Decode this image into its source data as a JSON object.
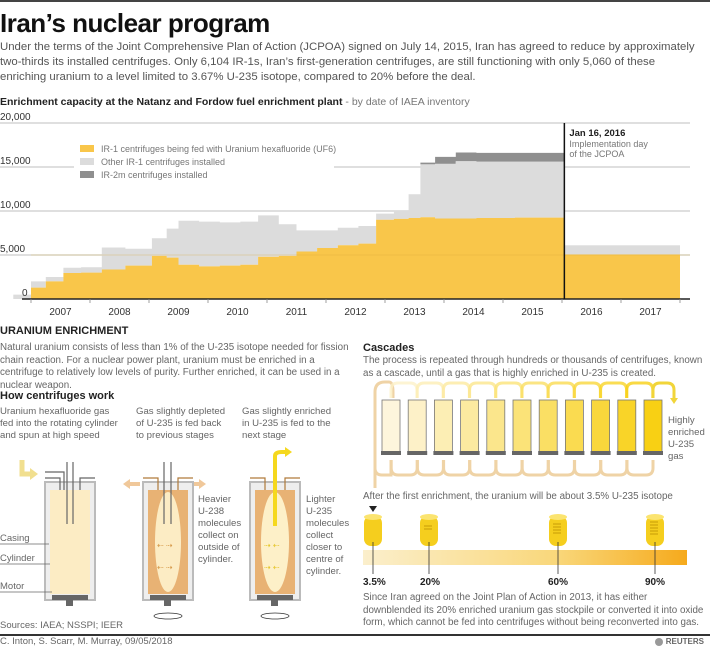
{
  "header": {
    "title": "Iran’s nuclear program",
    "intro": "Under the terms of the Joint Comprehensive Plan of Action (JCPOA) signed on July 14, 2015, Iran has agreed to reduce by approximately two-thirds its installed centrifuges. Only 6,104 IR-1s, Iran’s first-generation centrifuges, are still functioning with only 5,060 of these enriching uranium to a level limited to 3.67% U-235 isotope, compared to 20% before the deal."
  },
  "chart_heading": {
    "title": "Enrichment capacity at the Natanz and Fordow fuel enrichment plant",
    "subtitle": " - by date of IAEA inventory"
  },
  "chart_data": {
    "type": "area",
    "stacked": true,
    "step": true,
    "title": "Enrichment capacity at the Natanz and Fordow fuel enrichment plant",
    "subtitle": "by date of IAEA inventory",
    "xlabel": "",
    "ylabel": "",
    "xlim": [
      2006.5,
      2018.0
    ],
    "ylim": [
      0,
      20000
    ],
    "yticks": [
      0,
      5000,
      10000,
      15000,
      20000
    ],
    "ytick_labels": [
      "0",
      "5,000",
      "10,000",
      "15,000",
      "20,000"
    ],
    "xtick_labels": [
      "2007",
      "2008",
      "2009",
      "2010",
      "2011",
      "2012",
      "2013",
      "2014",
      "2015",
      "2016",
      "2017"
    ],
    "grid": true,
    "legend_position": "top-left",
    "x": [
      2006.7,
      2007.0,
      2007.25,
      2007.55,
      2007.85,
      2008.2,
      2008.6,
      2009.05,
      2009.3,
      2009.5,
      2009.85,
      2010.2,
      2010.55,
      2010.85,
      2011.2,
      2011.5,
      2011.85,
      2012.2,
      2012.55,
      2012.85,
      2013.15,
      2013.4,
      2013.6,
      2013.85,
      2014.2,
      2014.55,
      2014.85,
      2015.2,
      2015.55
    ],
    "x_end": 2016.05,
    "series": [
      {
        "name": "IR-1 centrifuges being fed with Uranium hexafluoride (UF6)",
        "color": "#f9c64a",
        "values": [
          0,
          1300,
          2000,
          2950,
          3000,
          3350,
          3800,
          4900,
          4700,
          3900,
          3700,
          3800,
          3900,
          4800,
          4900,
          5400,
          5800,
          6100,
          6300,
          9000,
          9100,
          9200,
          9300,
          9150,
          9150,
          9200,
          9200,
          9250,
          9250
        ]
      },
      {
        "name": "Other IR-1 centrifuges installed",
        "color": "#dcdcdc",
        "values": [
          500,
          700,
          500,
          600,
          600,
          2500,
          1900,
          2000,
          3300,
          5000,
          5100,
          4900,
          4900,
          4700,
          3600,
          2400,
          2000,
          2000,
          2000,
          700,
          1000,
          2700,
          6000,
          6200,
          6500,
          6400,
          6400,
          6350,
          6350
        ]
      },
      {
        "name": "IR-2m centrifuges installed",
        "color": "#8f8f8f",
        "values": [
          0,
          0,
          0,
          0,
          0,
          0,
          0,
          0,
          0,
          0,
          0,
          0,
          0,
          0,
          0,
          0,
          0,
          0,
          0,
          0,
          0,
          0,
          200,
          800,
          1000,
          1000,
          1000,
          1000,
          1000
        ]
      }
    ],
    "post_deal": {
      "x_start": 2016.05,
      "x_end": 2018.0,
      "ir1_fed": 5060,
      "other_ir1": 1044,
      "total_ir1": 6104
    },
    "annotations": [
      {
        "x": 2016.04,
        "title": "Jan 16, 2016",
        "text": "Implementation day of the JCPOA"
      }
    ]
  },
  "legend": [
    {
      "label": "IR-1 centrifuges being fed with Uranium hexafluoride (UF6)",
      "color": "#f9c64a"
    },
    {
      "label": "Other IR-1 centrifuges installed",
      "color": "#dcdcdc"
    },
    {
      "label": "IR-2m centrifuges installed",
      "color": "#8f8f8f"
    }
  ],
  "annotation": {
    "date": "Jan 16, 2016",
    "line1": "Implementation day",
    "line2": "of the JCPOA"
  },
  "enrichment": {
    "heading": "URANIUM ENRICHMENT",
    "text": "Natural uranium consists of less than 1% of the U-235 isotope needed for fission chain reaction. For a nuclear power plant, uranium must be enriched in a centrifuge to relatively low levels of purity. Further enriched, it can be used in a nuclear weapon."
  },
  "centrifuges": {
    "heading": "How centrifuges work",
    "step1": "Uranium hexafluoride gas fed into the rotating cylinder and spun at high speed",
    "step2": "Gas slightly depleted of U-235 is fed back to previous stages",
    "step3": "Gas slightly enriched in U-235 is fed to the next stage",
    "label_casing": "Casing",
    "label_cylinder": "Cylinder",
    "label_motor": "Motor",
    "heavier": [
      "Heavier",
      "U-238",
      "molecules",
      "collect on",
      "outside of",
      "cylinder."
    ],
    "lighter": [
      "Lighter",
      "U-235",
      "molecules",
      "collect",
      "closer to",
      "centre of",
      "cylinder."
    ]
  },
  "cascades": {
    "heading": "Cascades",
    "text": "The process is repeated through hundreds or thousands of centrifuges, known as a cascade, until a gas that is highly enriched in U-235 is created.",
    "output_label": [
      "Highly",
      "enriched",
      "U-235 gas"
    ],
    "count": 11,
    "first_enrichment": "After the first enrichment, the uranium will be about 3.5% U-235 isotope",
    "levels": [
      "3.5%",
      "20%",
      "60%",
      "90%"
    ],
    "note": "Since Iran agreed on the Joint Plan of Action in 2013, it has either downblended its 20% enriched uranium gas stockpile or converted it into oxide form, which cannot be fed into centrifuges without being reconverted into gas."
  },
  "footer": {
    "sources": "Sources: IAEA; NSSPI; IEER",
    "credit": "C. Inton, S. Scarr, M. Murray, 09/05/2018",
    "brand": "REUTERS"
  }
}
